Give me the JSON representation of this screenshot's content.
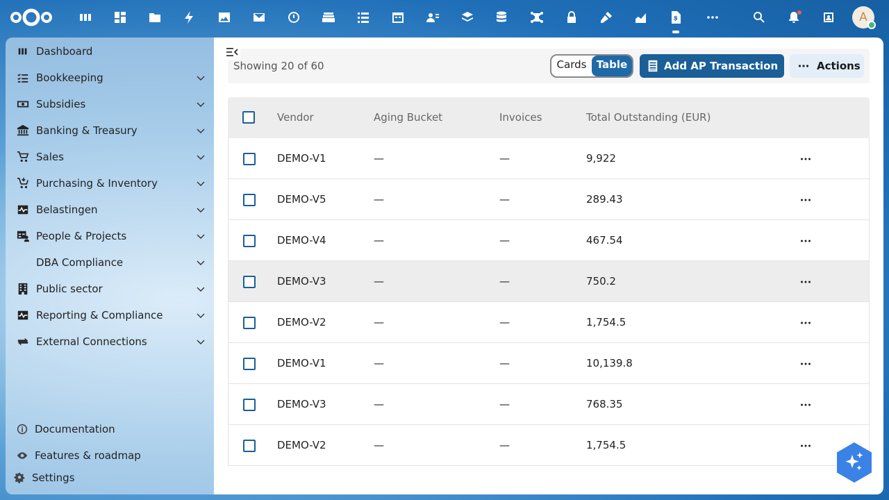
{
  "topbar": {
    "apps": [
      {
        "name": "dashboard-app-icon"
      },
      {
        "name": "activity-app-icon"
      },
      {
        "name": "files-app-icon"
      },
      {
        "name": "flash-app-icon"
      },
      {
        "name": "photos-app-icon"
      },
      {
        "name": "mail-app-icon"
      },
      {
        "name": "timer-app-icon"
      },
      {
        "name": "deck-app-icon"
      },
      {
        "name": "tasks-app-icon"
      },
      {
        "name": "calendar-app-icon"
      },
      {
        "name": "contacts-app-icon"
      },
      {
        "name": "layers-app-icon"
      },
      {
        "name": "database-app-icon"
      },
      {
        "name": "network-app-icon"
      },
      {
        "name": "passwords-app-icon"
      },
      {
        "name": "forms-app-icon"
      },
      {
        "name": "analytics-app-icon"
      },
      {
        "name": "invoice-app-icon"
      },
      {
        "name": "more-apps-icon"
      }
    ],
    "avatar_initial": "A"
  },
  "sidebar": {
    "items": [
      {
        "label": "Dashboard",
        "icon": "dashboard-icon",
        "has_chevron": false
      },
      {
        "label": "Bookkeeping",
        "icon": "checklist-icon",
        "has_chevron": true
      },
      {
        "label": "Subsidies",
        "icon": "cash-icon",
        "has_chevron": true
      },
      {
        "label": "Banking & Treasury",
        "icon": "bank-icon",
        "has_chevron": true
      },
      {
        "label": "Sales",
        "icon": "cart-icon",
        "has_chevron": true
      },
      {
        "label": "Purchasing & Inventory",
        "icon": "cart-arrow-icon",
        "has_chevron": true
      },
      {
        "label": "Belastingen",
        "icon": "pulse-icon",
        "has_chevron": true
      },
      {
        "label": "People & Projects",
        "icon": "people-table-icon",
        "has_chevron": true
      },
      {
        "label": "DBA Compliance",
        "icon": "",
        "has_chevron": true
      },
      {
        "label": "Public sector",
        "icon": "building-icon",
        "has_chevron": true
      },
      {
        "label": "Reporting & Compliance",
        "icon": "pulse-icon",
        "has_chevron": true
      },
      {
        "label": "External Connections",
        "icon": "swap-icon",
        "has_chevron": true
      }
    ],
    "bottom": {
      "documentation": "Documentation",
      "features": "Features & roadmap",
      "settings": "Settings"
    }
  },
  "toolbar": {
    "showing": "Showing 20 of 60",
    "view_cards": "Cards",
    "view_table": "Table",
    "selected_view": "Table",
    "add_button": "Add AP Transaction",
    "actions_button": "Actions"
  },
  "table": {
    "columns": [
      "Vendor",
      "Aging Bucket",
      "Invoices",
      "Total Outstanding (EUR)"
    ],
    "rows": [
      {
        "vendor": "DEMO-V1",
        "aging": "—",
        "invoices": "—",
        "total": "9,922"
      },
      {
        "vendor": "DEMO-V5",
        "aging": "—",
        "invoices": "—",
        "total": "289.43"
      },
      {
        "vendor": "DEMO-V4",
        "aging": "—",
        "invoices": "—",
        "total": "467.54"
      },
      {
        "vendor": "DEMO-V3",
        "aging": "—",
        "invoices": "—",
        "total": "750.2"
      },
      {
        "vendor": "DEMO-V2",
        "aging": "—",
        "invoices": "—",
        "total": "1,754.5"
      },
      {
        "vendor": "DEMO-V1",
        "aging": "—",
        "invoices": "—",
        "total": "10,139.8"
      },
      {
        "vendor": "DEMO-V3",
        "aging": "—",
        "invoices": "—",
        "total": "768.35"
      },
      {
        "vendor": "DEMO-V2",
        "aging": "—",
        "invoices": "—",
        "total": "1,754.5"
      }
    ]
  },
  "colors": {
    "primary": "#1a5f98",
    "header_bg": "#1f6fb8",
    "assistant": "#3b82e6"
  }
}
